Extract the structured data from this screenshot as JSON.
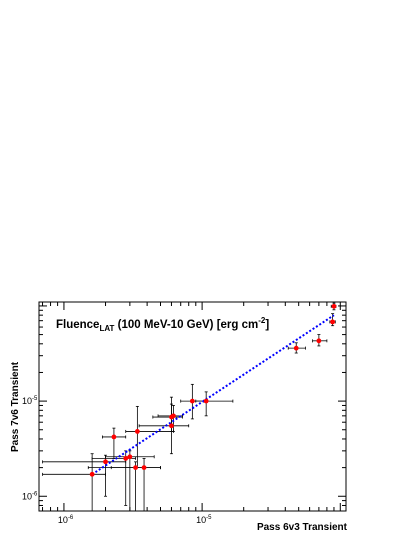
{
  "chart_data": {
    "type": "scatter",
    "title": {
      "main": "Fluence",
      "subscript": "LAT",
      "rest": " (100 MeV-10 GeV) [erg cm",
      "superscript": "-2",
      "close": "]"
    },
    "xlabel": "Pass 6v3 Transient",
    "ylabel": "Pass 7v6 Transient",
    "xscale": "log",
    "yscale": "log",
    "xlim": [
      6.6e-07,
      0.00011
    ],
    "ylim": [
      7e-07,
      0.00011
    ],
    "x_ticks": [
      {
        "value": 1e-06,
        "mantissa": "10",
        "exponent": "-6"
      },
      {
        "value": 1e-05,
        "mantissa": "10",
        "exponent": "-5"
      }
    ],
    "y_ticks": [
      {
        "value": 1e-06,
        "mantissa": "10",
        "exponent": "-6"
      },
      {
        "value": 1e-05,
        "mantissa": "10",
        "exponent": "-5"
      }
    ],
    "grid": false,
    "marker_color": "#ff0000",
    "errorbar_color": "#000000",
    "fit_line": {
      "color": "#0000ff",
      "style": "dotted",
      "from": [
        1.6e-06,
        1.7e-06
      ],
      "to": [
        9e-05,
        8e-05
      ]
    },
    "points": [
      {
        "x": 1.6e-06,
        "y": 1.7e-06,
        "xerr": [
          9e-07,
          4e-07
        ],
        "yerr": [
          1e-06,
          1.1e-06
        ]
      },
      {
        "x": 2e-06,
        "y": 2.3e-06,
        "xerr": [
          1.3e-06,
          8e-07
        ],
        "yerr": [
          1.3e-06,
          4e-07
        ]
      },
      {
        "x": 2.3e-06,
        "y": 4.2e-06,
        "xerr": [
          4e-07,
          5e-07
        ],
        "yerr": [
          1.7e-06,
          1e-06
        ]
      },
      {
        "x": 2.8e-06,
        "y": 2.5e-06,
        "xerr": [
          1.2e-06,
          5e-07
        ],
        "yerr": [
          1.7e-06,
          5e-07
        ]
      },
      {
        "x": 3e-06,
        "y": 2.6e-06,
        "xerr": [
          1e-06,
          1.5e-06
        ],
        "yerr": [
          1.9e-06,
          4e-07
        ]
      },
      {
        "x": 3.3e-06,
        "y": 2e-06,
        "xerr": [
          1.8e-06,
          1.7e-06
        ],
        "yerr": [
          1.3e-06,
          3e-07
        ]
      },
      {
        "x": 3.4e-06,
        "y": 4.8e-06,
        "xerr": [
          6e-07,
          2.8e-06
        ],
        "yerr": [
          2.8e-06,
          4e-06
        ]
      },
      {
        "x": 3.8e-06,
        "y": 2e-06,
        "xerr": [
          1.6e-06,
          1.2e-06
        ],
        "yerr": [
          1.3e-06,
          5e-07
        ]
      },
      {
        "x": 6e-06,
        "y": 5.5e-06,
        "xerr": [
          2.5e-06,
          2e-06
        ],
        "yerr": [
          2.7e-06,
          5.5e-06
        ]
      },
      {
        "x": 6e-06,
        "y": 6.8e-06,
        "xerr": [
          1.6e-06,
          1.2e-06
        ],
        "yerr": [
          2e-06,
          2.5e-06
        ]
      },
      {
        "x": 6.2e-06,
        "y": 7e-06,
        "xerr": [
          1.4e-06,
          1e-06
        ],
        "yerr": [
          2.2e-06,
          2e-06
        ]
      },
      {
        "x": 8.5e-06,
        "y": 1e-05,
        "xerr": [
          1.5e-06,
          1.8e-06
        ],
        "yerr": [
          3.5e-06,
          5e-06
        ]
      },
      {
        "x": 1.07e-05,
        "y": 1e-05,
        "xerr": [
          1.7e-06,
          6e-06
        ],
        "yerr": [
          3e-06,
          2.5e-06
        ]
      },
      {
        "x": 4.8e-05,
        "y": 3.6e-05,
        "xerr": [
          6e-06,
          8e-06
        ],
        "yerr": [
          4e-06,
          5e-06
        ]
      },
      {
        "x": 7e-05,
        "y": 4.3e-05,
        "xerr": [
          7e-06,
          1e-05
        ],
        "yerr": [
          5e-06,
          7e-06
        ]
      },
      {
        "x": 8.8e-05,
        "y": 6.8e-05,
        "xerr": [
          4e-06,
          4e-06
        ],
        "yerr": [
          6e-06,
          1.5e-05
        ]
      },
      {
        "x": 9e-05,
        "y": 9.9e-05,
        "xerr": [
          4e-06,
          3e-06
        ],
        "yerr": [
          8e-06,
          8e-06
        ]
      }
    ]
  }
}
